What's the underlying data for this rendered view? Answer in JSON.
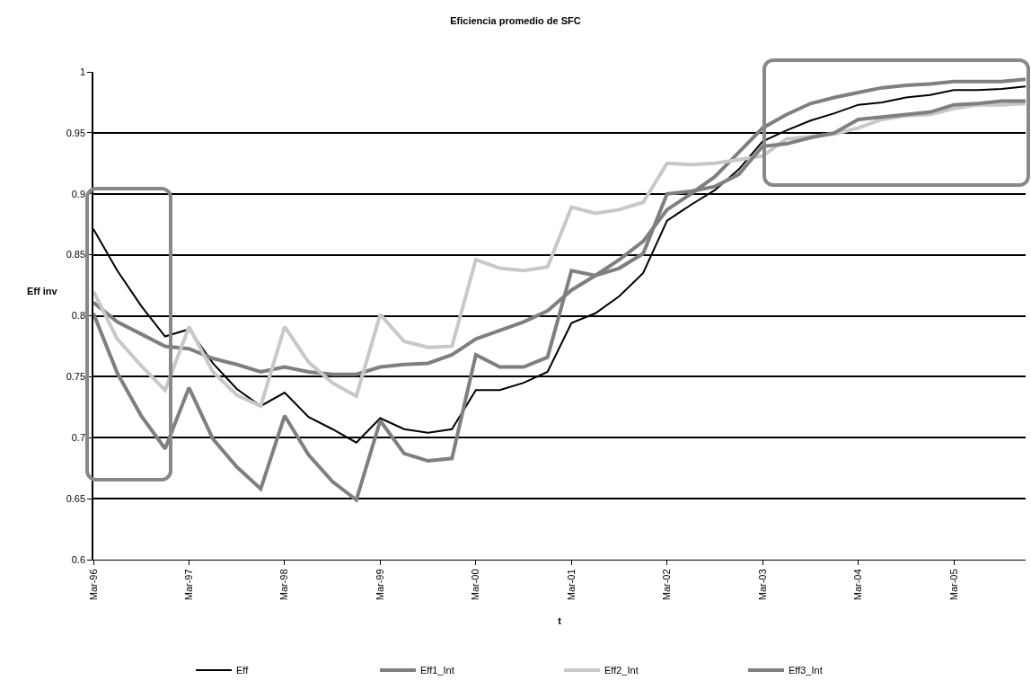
{
  "chart_data": {
    "type": "line",
    "title": "Eficiencia promedio de SFC",
    "xlabel": "t",
    "ylabel": "Eff inv",
    "categories": [
      "Mar-96",
      null,
      null,
      null,
      "Mar-97",
      null,
      null,
      null,
      "Mar-98",
      null,
      null,
      null,
      "Mar-99",
      null,
      null,
      null,
      "Mar-00",
      null,
      null,
      null,
      "Mar-01",
      null,
      null,
      null,
      "Mar-02",
      null,
      null,
      null,
      "Mar-03",
      null,
      null,
      null,
      "Mar-04",
      null,
      null,
      null,
      "Mar-05",
      null,
      null,
      null
    ],
    "series": [
      {
        "name": "Eff",
        "color": "#000000",
        "values": [
          0.871,
          0.837,
          0.808,
          0.783,
          0.789,
          0.761,
          0.74,
          0.726,
          0.737,
          0.717,
          0.707,
          0.696,
          0.716,
          0.707,
          0.704,
          0.707,
          0.739,
          0.739,
          0.745,
          0.754,
          0.794,
          0.802,
          0.816,
          0.835,
          0.878,
          0.891,
          0.903,
          0.92,
          0.943,
          0.952,
          0.96,
          0.966,
          0.973,
          0.975,
          0.979,
          0.981,
          0.985,
          0.985,
          0.986,
          0.988
        ]
      },
      {
        "name": "Eff1_Int",
        "color": "#7f7f7f",
        "values": [
          0.811,
          0.795,
          0.785,
          0.775,
          0.773,
          0.765,
          0.76,
          0.754,
          0.758,
          0.754,
          0.752,
          0.752,
          0.758,
          0.76,
          0.761,
          0.768,
          0.781,
          0.788,
          0.795,
          0.804,
          0.821,
          0.833,
          0.846,
          0.861,
          0.887,
          0.9,
          0.914,
          0.934,
          0.954,
          0.965,
          0.974,
          0.979,
          0.983,
          0.987,
          0.989,
          0.99,
          0.992,
          0.992,
          0.992,
          0.994
        ]
      },
      {
        "name": "Eff2_Int",
        "color": "#c8c8c8",
        "values": [
          0.82,
          0.781,
          0.759,
          0.739,
          0.791,
          0.754,
          0.735,
          0.726,
          0.791,
          0.762,
          0.745,
          0.734,
          0.801,
          0.779,
          0.774,
          0.775,
          0.846,
          0.839,
          0.837,
          0.84,
          0.889,
          0.884,
          0.887,
          0.893,
          0.925,
          0.924,
          0.925,
          0.928,
          0.931,
          0.945,
          0.947,
          0.949,
          0.954,
          0.961,
          0.964,
          0.965,
          0.97,
          0.973,
          0.973,
          0.974
        ]
      },
      {
        "name": "Eff3_Int",
        "color": "#7f7f7f",
        "values": [
          0.802,
          0.753,
          0.718,
          0.691,
          0.741,
          0.699,
          0.676,
          0.658,
          0.718,
          0.686,
          0.664,
          0.649,
          0.714,
          0.687,
          0.681,
          0.683,
          0.768,
          0.758,
          0.758,
          0.766,
          0.837,
          0.833,
          0.839,
          0.851,
          0.9,
          0.902,
          0.906,
          0.916,
          0.939,
          0.941,
          0.946,
          0.95,
          0.961,
          0.963,
          0.965,
          0.967,
          0.973,
          0.974,
          0.976,
          0.976
        ]
      }
    ],
    "ylim": [
      0.6,
      1
    ],
    "yticks": [
      0.6,
      0.65,
      0.7,
      0.75,
      0.8,
      0.85,
      0.9,
      0.95,
      1
    ],
    "grid": "y",
    "legend": "bottom",
    "marker": "none",
    "line_style": "solid"
  }
}
